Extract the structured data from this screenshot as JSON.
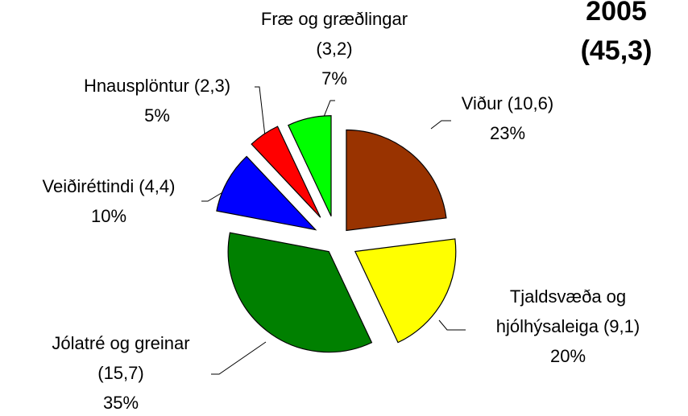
{
  "chart_data": {
    "type": "pie",
    "title": "2005",
    "subtitle": "(45,3)",
    "categories": [
      [
        "Viður"
      ],
      [
        "Tjaldsvæða og",
        "hjólhýsaleiga"
      ],
      [
        "Jólatré og greinar"
      ],
      [
        "Veiðiréttindi"
      ],
      [
        "Hnausplöntur"
      ],
      [
        "Fræ og græðlingar"
      ]
    ],
    "amounts": [
      10.6,
      9.1,
      15.7,
      4.4,
      2.3,
      3.2
    ],
    "amount_labels": [
      "(10,6)",
      "(9,1)",
      "(15,7)",
      "(4,4)",
      "(2,3)",
      "(3,2)"
    ],
    "values": [
      23,
      20,
      35,
      10,
      5,
      7
    ],
    "value_labels": [
      "23%",
      "20%",
      "35%",
      "10%",
      "5%",
      "7%"
    ],
    "colors": [
      "#993300",
      "#ffff00",
      "#008000",
      "#0000ff",
      "#ff0000",
      "#00ff00"
    ]
  }
}
